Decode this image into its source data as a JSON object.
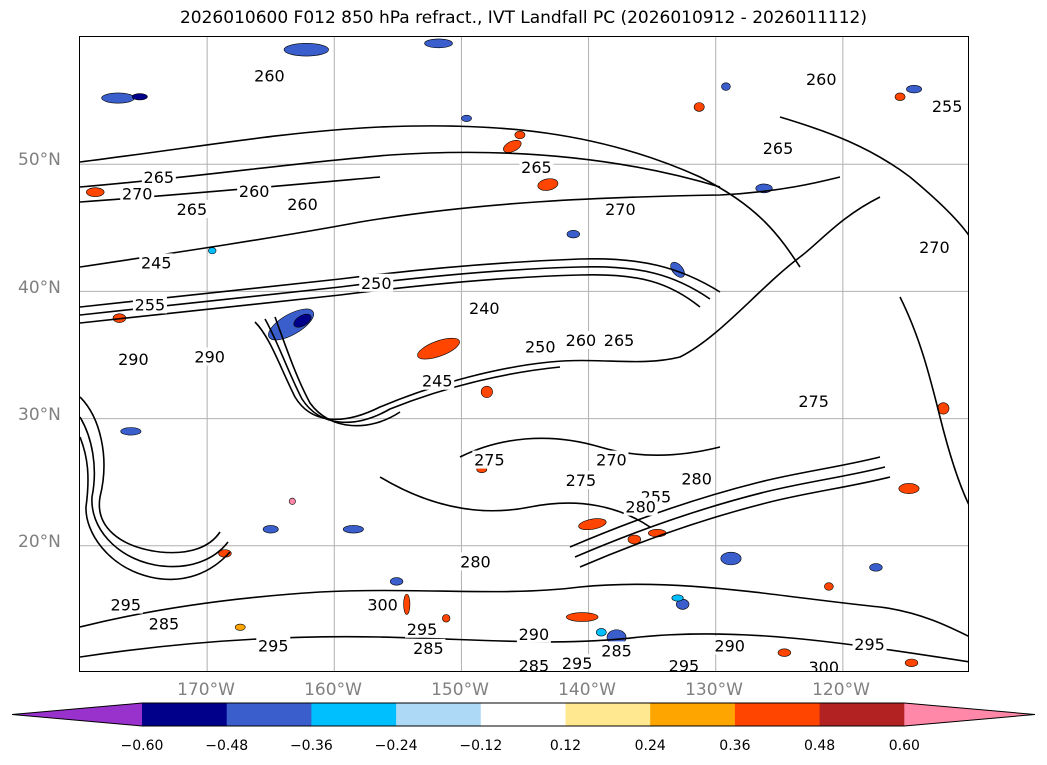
{
  "title": "2026010600 F012 850 hPa refract., IVT Landfall PC (2026010912 - 2026011112)",
  "map": {
    "region": "North-East Pacific",
    "lon_range": [
      -180,
      -110
    ],
    "lat_range": [
      10,
      60
    ],
    "lat_labels": [
      "50°N",
      "40°N",
      "30°N",
      "20°N"
    ],
    "lat_values": [
      50,
      40,
      30,
      20
    ],
    "lon_labels": [
      "170°W",
      "160°W",
      "150°W",
      "140°W",
      "130°W",
      "120°W"
    ],
    "lon_values": [
      -170,
      -160,
      -150,
      -140,
      -130,
      -120
    ],
    "gridlines": true,
    "contour_color": "#000000",
    "contour_labels": [
      {
        "text": "265",
        "lon": -173.8,
        "lat": 48.9
      },
      {
        "text": "270",
        "lon": -175.5,
        "lat": 47.6
      },
      {
        "text": "265",
        "lon": -171.2,
        "lat": 46.4
      },
      {
        "text": "260",
        "lon": -166.3,
        "lat": 47.8
      },
      {
        "text": "260",
        "lon": -162.5,
        "lat": 46.8
      },
      {
        "text": "245",
        "lon": -174,
        "lat": 42.2
      },
      {
        "text": "255",
        "lon": -174.5,
        "lat": 38.9
      },
      {
        "text": "250",
        "lon": -156.7,
        "lat": 40.6
      },
      {
        "text": "240",
        "lon": -148.2,
        "lat": 38.6
      },
      {
        "text": "250",
        "lon": -143.8,
        "lat": 35.6
      },
      {
        "text": "260",
        "lon": -140.6,
        "lat": 36.1
      },
      {
        "text": "265",
        "lon": -137.6,
        "lat": 36.1
      },
      {
        "text": "245",
        "lon": -151.9,
        "lat": 32.9
      },
      {
        "text": "270",
        "lon": -137.5,
        "lat": 46.4
      },
      {
        "text": "265",
        "lon": -144.1,
        "lat": 49.7
      },
      {
        "text": "260",
        "lon": -165.1,
        "lat": 56.9
      },
      {
        "text": "260",
        "lon": -121.7,
        "lat": 56.6
      },
      {
        "text": "255",
        "lon": -111.8,
        "lat": 54.5
      },
      {
        "text": "265",
        "lon": -125.1,
        "lat": 51.2
      },
      {
        "text": "270",
        "lon": -112.8,
        "lat": 43.4
      },
      {
        "text": "275",
        "lon": -122.3,
        "lat": 31.3
      },
      {
        "text": "275",
        "lon": -147.8,
        "lat": 26.7
      },
      {
        "text": "270",
        "lon": -138.2,
        "lat": 26.7
      },
      {
        "text": "275",
        "lon": -140.6,
        "lat": 25.1
      },
      {
        "text": "255",
        "lon": -134.7,
        "lat": 23.8
      },
      {
        "text": "280",
        "lon": -131.5,
        "lat": 25.2
      },
      {
        "text": "280",
        "lon": -148.9,
        "lat": 18.7
      },
      {
        "text": "295",
        "lon": -176.4,
        "lat": 15.3
      },
      {
        "text": "285",
        "lon": -173.4,
        "lat": 13.8
      },
      {
        "text": "300",
        "lon": -156.2,
        "lat": 15.3
      },
      {
        "text": "295",
        "lon": -153.1,
        "lat": 13.4
      },
      {
        "text": "295",
        "lon": -164.8,
        "lat": 12.1
      },
      {
        "text": "285",
        "lon": -152.6,
        "lat": 11.9
      },
      {
        "text": "290",
        "lon": -144.3,
        "lat": 13.0
      },
      {
        "text": "285",
        "lon": -137.8,
        "lat": 11.7
      },
      {
        "text": "290",
        "lon": -128.9,
        "lat": 12.1
      },
      {
        "text": "295",
        "lon": -117.9,
        "lat": 12.2
      },
      {
        "text": "295",
        "lon": -132.5,
        "lat": 10.5
      },
      {
        "text": "300",
        "lon": -121.5,
        "lat": 10.4
      },
      {
        "text": "285",
        "lon": -144.3,
        "lat": 10.5
      },
      {
        "text": "295",
        "lon": -140.9,
        "lat": 10.7
      },
      {
        "text": "280",
        "lon": -135.9,
        "lat": 23.0
      },
      {
        "text": "290",
        "lon": -175.8,
        "lat": 34.6
      },
      {
        "text": "290",
        "lon": -169.8,
        "lat": 34.8
      }
    ],
    "shaded_features": [
      {
        "color": "#ff4500",
        "lon": -151.8,
        "lat": 35.5,
        "w": 3.5,
        "h": 1.2,
        "rot": -20
      },
      {
        "color": "#ff4500",
        "lon": -140.5,
        "lat": 14.4,
        "w": 2.5,
        "h": 0.7,
        "rot": 0
      },
      {
        "color": "#ff4500",
        "lon": -146,
        "lat": 51.4,
        "w": 1.5,
        "h": 0.8,
        "rot": -25
      },
      {
        "color": "#ff4500",
        "lon": -178.8,
        "lat": 47.8,
        "w": 1.4,
        "h": 0.7,
        "rot": 0
      },
      {
        "color": "#ff4500",
        "lon": -143.2,
        "lat": 48.4,
        "w": 1.6,
        "h": 0.9,
        "rot": -10
      },
      {
        "color": "#ff4500",
        "lon": -139.7,
        "lat": 21.7,
        "w": 2.2,
        "h": 0.8,
        "rot": -10
      },
      {
        "color": "#ff4500",
        "lon": -115.5,
        "lat": 55.3,
        "w": 0.8,
        "h": 0.6,
        "rot": 0
      },
      {
        "color": "#ff4500",
        "lon": -114.8,
        "lat": 24.5,
        "w": 1.6,
        "h": 0.8,
        "rot": 0
      },
      {
        "color": "#ff4500",
        "lon": -112.1,
        "lat": 30.8,
        "w": 0.9,
        "h": 0.9,
        "rot": 0
      },
      {
        "color": "#ff4500",
        "lon": -148.0,
        "lat": 32.1,
        "w": 0.9,
        "h": 0.9,
        "rot": 0
      },
      {
        "color": "#ff4500",
        "lon": -131.3,
        "lat": 54.5,
        "w": 0.8,
        "h": 0.7,
        "rot": 0
      },
      {
        "color": "#ff4500",
        "lon": -136.4,
        "lat": 20.5,
        "w": 1.0,
        "h": 0.7,
        "rot": 0
      },
      {
        "color": "#ff4500",
        "lon": -154.3,
        "lat": 15.4,
        "w": 0.5,
        "h": 1.6,
        "rot": 0
      },
      {
        "color": "#ff4500",
        "lon": -168.6,
        "lat": 19.4,
        "w": 1.0,
        "h": 0.6,
        "rot": 0
      },
      {
        "color": "#ff4500",
        "lon": -145.4,
        "lat": 52.3,
        "w": 0.8,
        "h": 0.6,
        "rot": 0
      },
      {
        "color": "#ff4500",
        "lon": -121.1,
        "lat": 16.8,
        "w": 0.7,
        "h": 0.6,
        "rot": 0
      },
      {
        "color": "#ff4500",
        "lon": -114.6,
        "lat": 10.8,
        "w": 1.0,
        "h": 0.6,
        "rot": 0
      },
      {
        "color": "#ff4500",
        "lon": -134.6,
        "lat": 21.0,
        "w": 1.4,
        "h": 0.6,
        "rot": 0
      },
      {
        "color": "#ff4500",
        "lon": -148.4,
        "lat": 26.0,
        "w": 0.8,
        "h": 0.5,
        "rot": 0
      },
      {
        "color": "#ff4500",
        "lon": -151.2,
        "lat": 14.3,
        "w": 0.6,
        "h": 0.6,
        "rot": 0
      },
      {
        "color": "#ff4500",
        "lon": -176.9,
        "lat": 37.9,
        "w": 1.0,
        "h": 0.7,
        "rot": 0
      },
      {
        "color": "#ff87a8",
        "lon": -163.3,
        "lat": 23.5,
        "w": 0.5,
        "h": 0.5,
        "rot": 0
      },
      {
        "color": "#ffa500",
        "lon": -167.4,
        "lat": 13.6,
        "w": 0.8,
        "h": 0.5,
        "rot": 0
      },
      {
        "color": "#ff4500",
        "lon": -124.6,
        "lat": 11.6,
        "w": 1.0,
        "h": 0.6,
        "rot": 0
      },
      {
        "color": "#3a5fcd",
        "lon": -163.4,
        "lat": 37.4,
        "w": 4.0,
        "h": 1.6,
        "rot": -30
      },
      {
        "color": "#3a5fcd",
        "lon": -177.0,
        "lat": 55.2,
        "w": 2.6,
        "h": 0.8,
        "rot": 0
      },
      {
        "color": "#3a5fcd",
        "lon": -162.2,
        "lat": 59.0,
        "w": 3.5,
        "h": 1.0,
        "rot": 0
      },
      {
        "color": "#3a5fcd",
        "lon": -151.8,
        "lat": 59.5,
        "w": 2.2,
        "h": 0.7,
        "rot": 0
      },
      {
        "color": "#3a5fcd",
        "lon": -137.8,
        "lat": 12.8,
        "w": 1.5,
        "h": 1.2,
        "rot": 0
      },
      {
        "color": "#3a5fcd",
        "lon": -133.0,
        "lat": 41.7,
        "w": 0.8,
        "h": 1.4,
        "rot": -40
      },
      {
        "color": "#3a5fcd",
        "lon": -132.6,
        "lat": 15.4,
        "w": 1.0,
        "h": 0.8,
        "rot": 0
      },
      {
        "color": "#3a5fcd",
        "lon": -129.2,
        "lat": 56.1,
        "w": 0.7,
        "h": 0.6,
        "rot": 0
      },
      {
        "color": "#3a5fcd",
        "lon": -114.4,
        "lat": 55.9,
        "w": 1.2,
        "h": 0.6,
        "rot": 0
      },
      {
        "color": "#3a5fcd",
        "lon": -126.2,
        "lat": 48.1,
        "w": 1.3,
        "h": 0.7,
        "rot": 0
      },
      {
        "color": "#3a5fcd",
        "lon": -128.8,
        "lat": 19.0,
        "w": 1.6,
        "h": 1.0,
        "rot": 0
      },
      {
        "color": "#3a5fcd",
        "lon": -165.0,
        "lat": 21.3,
        "w": 1.2,
        "h": 0.6,
        "rot": 0
      },
      {
        "color": "#3a5fcd",
        "lon": -158.5,
        "lat": 21.3,
        "w": 1.6,
        "h": 0.6,
        "rot": 0
      },
      {
        "color": "#3a5fcd",
        "lon": -149.6,
        "lat": 53.6,
        "w": 0.8,
        "h": 0.5,
        "rot": 0
      },
      {
        "color": "#3a5fcd",
        "lon": -155.1,
        "lat": 17.2,
        "w": 1.0,
        "h": 0.6,
        "rot": 0
      },
      {
        "color": "#3a5fcd",
        "lon": -117.4,
        "lat": 18.3,
        "w": 1.0,
        "h": 0.6,
        "rot": 0
      },
      {
        "color": "#3a5fcd",
        "lon": -176.0,
        "lat": 29.0,
        "w": 1.6,
        "h": 0.6,
        "rot": 0
      },
      {
        "color": "#3a5fcd",
        "lon": -141.2,
        "lat": 44.5,
        "w": 1.0,
        "h": 0.6,
        "rot": 0
      },
      {
        "color": "#00bfff",
        "lon": -133.0,
        "lat": 15.9,
        "w": 0.9,
        "h": 0.5,
        "rot": 0
      },
      {
        "color": "#00bfff",
        "lon": -169.6,
        "lat": 43.2,
        "w": 0.6,
        "h": 0.5,
        "rot": 0
      },
      {
        "color": "#00bfff",
        "lon": -139.0,
        "lat": 13.2,
        "w": 0.8,
        "h": 0.6,
        "rot": 0
      },
      {
        "color": "#00008b",
        "lon": -162.5,
        "lat": 37.7,
        "w": 1.5,
        "h": 0.8,
        "rot": -30
      },
      {
        "color": "#00008b",
        "lon": -175.3,
        "lat": 55.3,
        "w": 1.2,
        "h": 0.5,
        "rot": 0
      }
    ]
  },
  "colorbar": {
    "colors": [
      "#9932cc",
      "#00008b",
      "#3a5fcd",
      "#00bfff",
      "#add8f6",
      "#ffffff",
      "#ffe890",
      "#ffa500",
      "#ff4500",
      "#b22222",
      "#ff87a8"
    ],
    "tick_labels": [
      "−0.60",
      "−0.48",
      "−0.36",
      "−0.24",
      "−0.12",
      "0.12",
      "0.24",
      "0.36",
      "0.48",
      "0.60"
    ],
    "tick_values": [
      -0.6,
      -0.48,
      -0.36,
      -0.24,
      -0.12,
      0.12,
      0.24,
      0.36,
      0.48,
      0.6
    ],
    "extend": "both"
  }
}
